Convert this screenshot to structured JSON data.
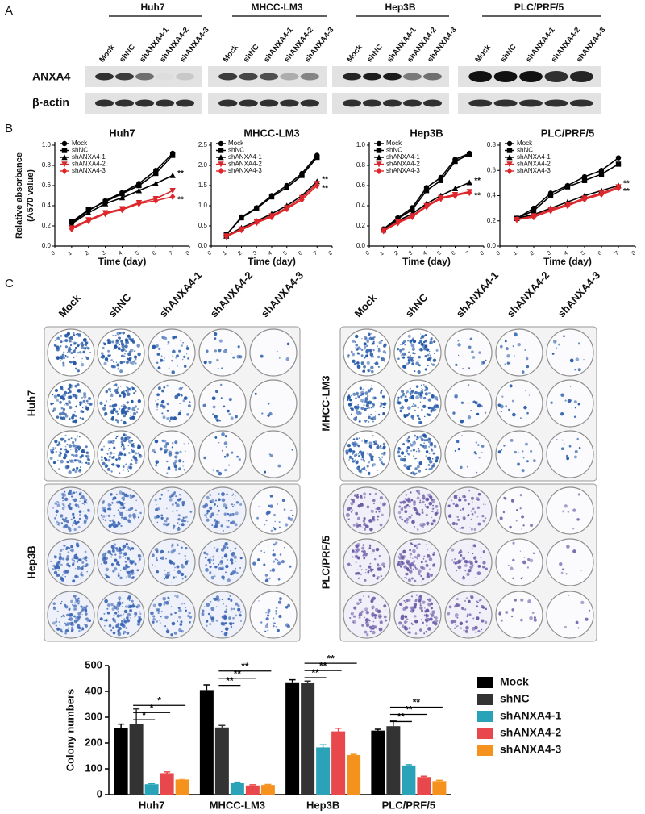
{
  "panel_labels": {
    "a": "A",
    "b": "B",
    "c": "C"
  },
  "western_blot": {
    "cell_lines": [
      "Huh7",
      "MHCC-LM3",
      "Hep3B",
      "PLC/PRF/5"
    ],
    "lanes": [
      "Mock",
      "shNC",
      "shANXA4-1",
      "shANXA4-2",
      "shANXA4-3"
    ],
    "proteins": [
      "ANXA4",
      "β-actin"
    ]
  },
  "colony_assay": {
    "groups": [
      "Mock",
      "shNC",
      "shANXA4-1",
      "shANXA4-2",
      "shANXA4-3"
    ],
    "cell_lines": [
      "Huh7",
      "MHCC-LM3",
      "Hep3B",
      "PLC/PRF/5"
    ]
  },
  "chart_data": [
    {
      "type": "line",
      "title": "Huh7",
      "x_label": "Time (day)",
      "y_label": [
        "Relative absorbance",
        "(A570 value)"
      ],
      "x": [
        1,
        2,
        3,
        4,
        5,
        6,
        7
      ],
      "xlim": [
        0,
        8
      ],
      "xticks": [
        0,
        1,
        2,
        3,
        4,
        5,
        6,
        7,
        8
      ],
      "ylim": [
        0,
        1
      ],
      "yticks": [
        {
          "value": 0,
          "label": "0.0"
        },
        0.2,
        0.4,
        0.6,
        0.8,
        {
          "value": 1,
          "label": "1.0"
        }
      ],
      "series": [
        {
          "name": "Mock",
          "color": "#000000",
          "marker": "circle",
          "values": [
            0.23,
            0.35,
            0.45,
            0.53,
            0.62,
            0.75,
            0.92
          ]
        },
        {
          "name": "shNC",
          "color": "#000000",
          "marker": "square",
          "values": [
            0.24,
            0.36,
            0.44,
            0.52,
            0.6,
            0.72,
            0.9
          ]
        },
        {
          "name": "shANXA4-1",
          "color": "#000000",
          "marker": "triangle",
          "values": [
            0.22,
            0.33,
            0.42,
            0.48,
            0.55,
            0.62,
            0.7
          ]
        },
        {
          "name": "shANXA4-2",
          "color": "#d7282f",
          "marker": "triangle-down",
          "values": [
            0.18,
            0.26,
            0.33,
            0.37,
            0.43,
            0.47,
            0.55
          ]
        },
        {
          "name": "shANXA4-3",
          "color": "#e0262b",
          "marker": "diamond",
          "values": [
            0.17,
            0.25,
            0.32,
            0.36,
            0.42,
            0.45,
            0.49
          ]
        }
      ],
      "annotations": [
        "**",
        "**"
      ]
    },
    {
      "type": "line",
      "title": "MHCC-LM3",
      "x_label": "Time (day)",
      "x": [
        1,
        2,
        3,
        4,
        5,
        6,
        7
      ],
      "xlim": [
        0,
        8
      ],
      "xticks": [
        0,
        1,
        2,
        3,
        4,
        5,
        6,
        7,
        8
      ],
      "ylim": [
        0,
        2.5
      ],
      "yticks": [
        {
          "value": 0,
          "label": "0.0"
        },
        0.5,
        {
          "value": 1,
          "label": "1.0"
        },
        1.5,
        {
          "value": 2,
          "label": "2.0"
        },
        2.5
      ],
      "series": [
        {
          "name": "Mock",
          "color": "#000000",
          "marker": "circle",
          "values": [
            0.28,
            0.72,
            0.95,
            1.25,
            1.5,
            1.8,
            2.25
          ]
        },
        {
          "name": "shNC",
          "color": "#000000",
          "marker": "square",
          "values": [
            0.28,
            0.7,
            0.93,
            1.22,
            1.45,
            1.75,
            2.2
          ]
        },
        {
          "name": "shANXA4-1",
          "color": "#000000",
          "marker": "triangle",
          "values": [
            0.25,
            0.45,
            0.62,
            0.8,
            1.0,
            1.25,
            1.6
          ]
        },
        {
          "name": "shANXA4-2",
          "color": "#d7282f",
          "marker": "triangle-down",
          "values": [
            0.25,
            0.42,
            0.6,
            0.75,
            0.95,
            1.2,
            1.55
          ]
        },
        {
          "name": "shANXA4-3",
          "color": "#e0262b",
          "marker": "diamond",
          "values": [
            0.24,
            0.4,
            0.58,
            0.72,
            0.92,
            1.15,
            1.5
          ]
        }
      ],
      "annotations": [
        "**",
        "**"
      ]
    },
    {
      "type": "line",
      "title": "Hep3B",
      "x_label": "Time (day)",
      "x": [
        1,
        2,
        3,
        4,
        5,
        6,
        7
      ],
      "xlim": [
        0,
        8
      ],
      "xticks": [
        0,
        1,
        2,
        3,
        4,
        5,
        6,
        7,
        8
      ],
      "ylim": [
        0,
        1
      ],
      "yticks": [
        {
          "value": 0,
          "label": "0.0"
        },
        0.2,
        0.4,
        0.6,
        0.8,
        {
          "value": 1,
          "label": "1.0"
        }
      ],
      "series": [
        {
          "name": "Mock",
          "color": "#000000",
          "marker": "circle",
          "values": [
            0.17,
            0.28,
            0.38,
            0.58,
            0.68,
            0.86,
            0.92
          ]
        },
        {
          "name": "shNC",
          "color": "#000000",
          "marker": "square",
          "values": [
            0.16,
            0.27,
            0.36,
            0.55,
            0.65,
            0.84,
            0.91
          ]
        },
        {
          "name": "shANXA4-1",
          "color": "#000000",
          "marker": "triangle",
          "values": [
            0.16,
            0.25,
            0.32,
            0.42,
            0.5,
            0.57,
            0.63
          ]
        },
        {
          "name": "shANXA4-2",
          "color": "#d7282f",
          "marker": "triangle-down",
          "values": [
            0.16,
            0.24,
            0.3,
            0.4,
            0.48,
            0.51,
            0.54
          ]
        },
        {
          "name": "shANXA4-3",
          "color": "#e0262b",
          "marker": "diamond",
          "values": [
            0.15,
            0.23,
            0.29,
            0.39,
            0.47,
            0.5,
            0.53
          ]
        }
      ],
      "annotations": [
        "**",
        "**"
      ]
    },
    {
      "type": "line",
      "title": "PLC/PRF/5",
      "x_label": "Time (day)",
      "x": [
        1,
        2,
        3,
        4,
        5,
        6,
        7
      ],
      "xlim": [
        0,
        8
      ],
      "xticks": [
        0,
        1,
        2,
        3,
        4,
        5,
        6,
        7,
        8
      ],
      "ylim": [
        0,
        0.8
      ],
      "yticks": [
        {
          "value": 0,
          "label": "0.0"
        },
        0.2,
        0.4,
        0.6,
        0.8
      ],
      "series": [
        {
          "name": "Mock",
          "color": "#000000",
          "marker": "circle",
          "values": [
            0.22,
            0.3,
            0.42,
            0.48,
            0.55,
            0.6,
            0.7
          ]
        },
        {
          "name": "shNC",
          "color": "#000000",
          "marker": "square",
          "values": [
            0.22,
            0.28,
            0.4,
            0.47,
            0.52,
            0.57,
            0.65
          ]
        },
        {
          "name": "shANXA4-1",
          "color": "#000000",
          "marker": "triangle",
          "values": [
            0.22,
            0.25,
            0.3,
            0.35,
            0.4,
            0.44,
            0.48
          ]
        },
        {
          "name": "shANXA4-2",
          "color": "#d7282f",
          "marker": "triangle-down",
          "values": [
            0.21,
            0.24,
            0.29,
            0.33,
            0.38,
            0.42,
            0.47
          ]
        },
        {
          "name": "shANXA4-3",
          "color": "#e0262b",
          "marker": "diamond",
          "values": [
            0.21,
            0.23,
            0.28,
            0.32,
            0.37,
            0.41,
            0.46
          ]
        }
      ],
      "annotations": [
        "**",
        "**"
      ]
    },
    {
      "type": "bar",
      "y_label": "Colony numbers",
      "categories": [
        "Huh7",
        "MHCC-LM3",
        "Hep3B",
        "PLC/PRF/5"
      ],
      "ylim": [
        0,
        500
      ],
      "yticks": [
        0,
        100,
        200,
        300,
        400,
        500
      ],
      "series": [
        {
          "name": "Mock",
          "color": "#000000",
          "values": [
            258,
            405,
            435,
            248
          ],
          "errors": [
            15,
            20,
            10,
            5
          ]
        },
        {
          "name": "shNC",
          "color": "#333333",
          "values": [
            272,
            260,
            432,
            265
          ],
          "errors": [
            60,
            8,
            8,
            20
          ]
        },
        {
          "name": "shANXA4-1",
          "color": "#2aa3b8",
          "values": [
            40,
            45,
            183,
            113
          ],
          "errors": [
            3,
            3,
            10,
            3
          ]
        },
        {
          "name": "shANXA4-2",
          "color": "#e8474c",
          "values": [
            83,
            35,
            245,
            68
          ],
          "errors": [
            5,
            3,
            12,
            3
          ]
        },
        {
          "name": "shANXA4-3",
          "color": "#f5921e",
          "values": [
            58,
            37,
            153,
            52
          ],
          "errors": [
            3,
            2,
            3,
            3
          ]
        }
      ],
      "significance": [
        [
          "*",
          "*",
          "*"
        ],
        [
          "**",
          "**",
          "**"
        ],
        [
          "**",
          "**",
          "**"
        ],
        [
          "**",
          "**",
          "**"
        ]
      ],
      "legend": "right"
    }
  ]
}
